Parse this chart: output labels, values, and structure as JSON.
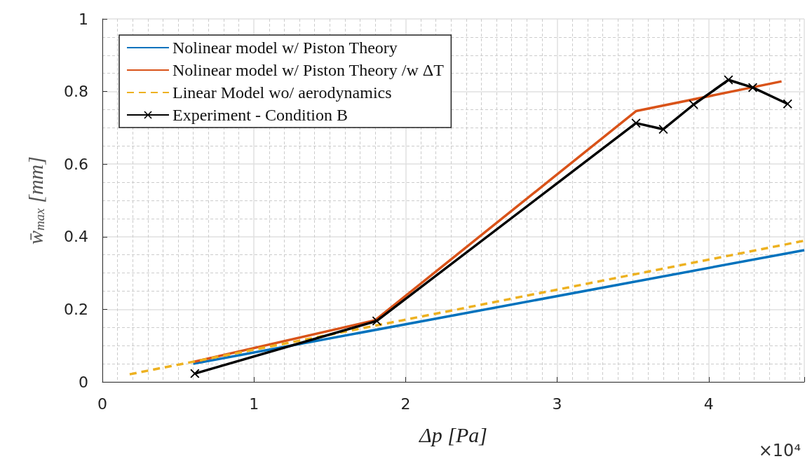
{
  "chart_data": {
    "type": "line",
    "xlabel": "Δp [Pa]",
    "ylabel": "w̄$_{max}$ [mm]",
    "xlim": [
      0,
      4.63
    ],
    "ylim": [
      0,
      1
    ],
    "xticks": [
      0,
      1,
      2,
      3,
      4
    ],
    "yticks": [
      0,
      0.2,
      0.4,
      0.6,
      0.8,
      1
    ],
    "grid": true,
    "legend": "top left",
    "annotations": [
      "×10⁴"
    ],
    "series": [
      {
        "name": "Nolinear model w/ Piston Theory",
        "color": "#0072bd",
        "line_style": "solid",
        "marker": "none",
        "x": [
          0.6,
          4.63
        ],
        "values": [
          0.05,
          0.363
        ]
      },
      {
        "name": "Nolinear model w/ Piston Theory /w ΔT",
        "color": "#d95319",
        "line_style": "solid",
        "marker": "none",
        "x": [
          0.6,
          1.8,
          3.52,
          4.48
        ],
        "values": [
          0.055,
          0.17,
          0.746,
          0.828
        ]
      },
      {
        "name": "Linear Model wo/ aerodynamics",
        "color": "#edb120",
        "line_style": "dashed",
        "marker": "none",
        "x": [
          0.18,
          4.63
        ],
        "values": [
          0.021,
          0.389
        ]
      },
      {
        "name": "Experiment - Condition B",
        "color": "#000000",
        "line_style": "solid",
        "marker": "cross",
        "x": [
          0.61,
          1.81,
          3.52,
          3.7,
          3.9,
          4.13,
          4.29,
          4.52
        ],
        "values": [
          0.023,
          0.168,
          0.713,
          0.696,
          0.764,
          0.832,
          0.811,
          0.766
        ]
      }
    ]
  }
}
